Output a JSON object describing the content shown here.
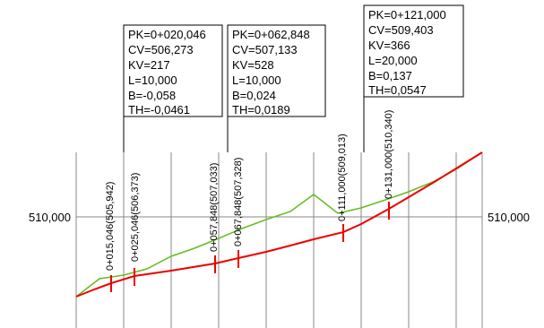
{
  "profile": {
    "elevation_label_left": "510,000",
    "elevation_label_right": "510,000",
    "colors": {
      "terrain_line": "#66bb22",
      "grade_line": "#ee0000",
      "tick_marks": "#ee0000",
      "grid": "#888888",
      "text": "#000000"
    },
    "curve_boxes": [
      {
        "lines": [
          "PK=0+020,046",
          "CV=506,273",
          "KV=217",
          "L=10,000",
          "B=-0,058",
          "TH=-0,0461"
        ]
      },
      {
        "lines": [
          "PK=0+062,848",
          "CV=507,133",
          "KV=528",
          "L=10,000",
          "B=0,024",
          "TH=0,0189"
        ]
      },
      {
        "lines": [
          "PK=0+121,000",
          "CV=509,403",
          "KV=366",
          "L=20,000",
          "B=0,137",
          "TH=0,0547"
        ]
      }
    ],
    "chainage_labels": [
      "0+015,046(505,942)",
      "0+025,046(506,373)",
      "0+057,848(507,033)",
      "0+067,848(507,328)",
      "0+111,000(509,013)",
      "0+131,000(510,340)"
    ]
  }
}
